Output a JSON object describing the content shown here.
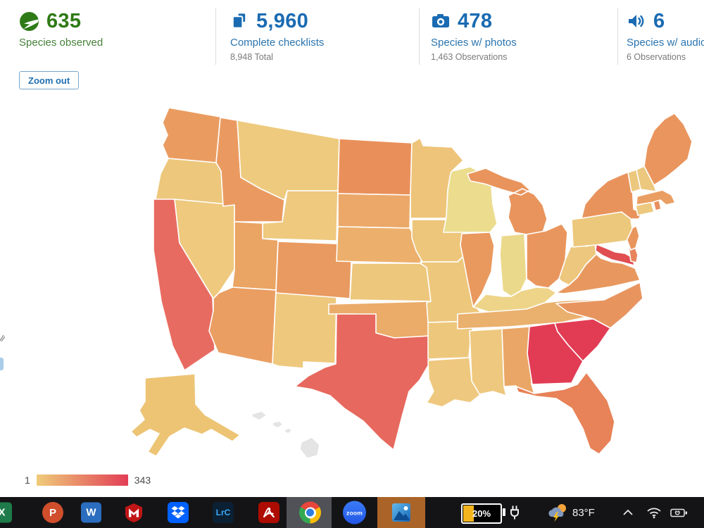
{
  "stats": {
    "species": {
      "value": "635",
      "label": "Species observed"
    },
    "checklists": {
      "value": "5,960",
      "label": "Complete checklists",
      "sub": "8,948 Total"
    },
    "photos": {
      "value": "478",
      "label": "Species w/ photos",
      "sub": "1,463 Observations"
    },
    "audio": {
      "value": "6",
      "label": "Species w/ audio",
      "sub": "6 Observations"
    }
  },
  "icons": {
    "species": "bird-circle-icon",
    "checklists": "checklist-icon",
    "photos": "camera-icon",
    "audio": "speaker-icon"
  },
  "controls": {
    "zoom_out": "Zoom out"
  },
  "legend": {
    "min": "1",
    "max": "343",
    "gradient_start": "#efcb79",
    "gradient_end": "#e23e55"
  },
  "map": {
    "type": "choropleth",
    "no_data_color": "#e4e4e4",
    "states": [
      {
        "id": "WA",
        "color": "#ea9c60"
      },
      {
        "id": "OR",
        "color": "#ecc77c"
      },
      {
        "id": "CA",
        "color": "#e86b61"
      },
      {
        "id": "NV",
        "color": "#eec97e"
      },
      {
        "id": "ID",
        "color": "#ea9a60"
      },
      {
        "id": "MT",
        "color": "#eeca7e"
      },
      {
        "id": "WY",
        "color": "#eec97e"
      },
      {
        "id": "UT",
        "color": "#eaa464"
      },
      {
        "id": "AZ",
        "color": "#ea9e62"
      },
      {
        "id": "NM",
        "color": "#eec87d"
      },
      {
        "id": "CO",
        "color": "#e99a60"
      },
      {
        "id": "ND",
        "color": "#e9905a"
      },
      {
        "id": "SD",
        "color": "#eba868"
      },
      {
        "id": "NE",
        "color": "#ecb06c"
      },
      {
        "id": "KS",
        "color": "#edc77c"
      },
      {
        "id": "OK",
        "color": "#ebac6a"
      },
      {
        "id": "TX",
        "color": "#e7685e"
      },
      {
        "id": "MN",
        "color": "#eec47a"
      },
      {
        "id": "IA",
        "color": "#edc67b"
      },
      {
        "id": "MO",
        "color": "#edc77c"
      },
      {
        "id": "AR",
        "color": "#edc77c"
      },
      {
        "id": "LA",
        "color": "#eec87e"
      },
      {
        "id": "WI",
        "color": "#ebdc8e"
      },
      {
        "id": "IL",
        "color": "#e9985e"
      },
      {
        "id": "IN",
        "color": "#ebd98b"
      },
      {
        "id": "MI",
        "color": "#e9945c"
      },
      {
        "id": "OH",
        "color": "#e9965e"
      },
      {
        "id": "KY",
        "color": "#edd488"
      },
      {
        "id": "TN",
        "color": "#eab06e"
      },
      {
        "id": "MS",
        "color": "#eec87f"
      },
      {
        "id": "AL",
        "color": "#eaa666"
      },
      {
        "id": "GA",
        "color": "#e23c55"
      },
      {
        "id": "SC",
        "color": "#e23c55"
      },
      {
        "id": "NC",
        "color": "#e8945f"
      },
      {
        "id": "FL",
        "color": "#e88258"
      },
      {
        "id": "VA",
        "color": "#e8985e"
      },
      {
        "id": "WV",
        "color": "#ecc77d"
      },
      {
        "id": "MD",
        "color": "#e04e52"
      },
      {
        "id": "DE",
        "color": "#e8845c"
      },
      {
        "id": "NJ",
        "color": "#e9965e"
      },
      {
        "id": "PA",
        "color": "#ecc87d"
      },
      {
        "id": "NY",
        "color": "#e9935c"
      },
      {
        "id": "CT",
        "color": "#ecc97f"
      },
      {
        "id": "RI",
        "color": "#e98e5c"
      },
      {
        "id": "MA",
        "color": "#ea9e62"
      },
      {
        "id": "VT",
        "color": "#ecc87e"
      },
      {
        "id": "NH",
        "color": "#ecc87e"
      },
      {
        "id": "ME",
        "color": "#e9955d"
      },
      {
        "id": "AK",
        "color": "#ecc474"
      },
      {
        "id": "HI",
        "color": "#e4e4e4"
      }
    ]
  },
  "taskbar": {
    "apps": [
      "excel",
      "powerpoint",
      "word",
      "mcafee",
      "dropbox",
      "lightroom-classic",
      "acrobat",
      "chrome",
      "zoom",
      "photos"
    ],
    "app_letters": {
      "excel": "X",
      "powerpoint": "P",
      "word": "W"
    },
    "lightroom_label": "LrC",
    "zoom_label": "zoom",
    "battery_widget": {
      "percent": "20%"
    },
    "weather": {
      "temp": "83°F"
    }
  }
}
